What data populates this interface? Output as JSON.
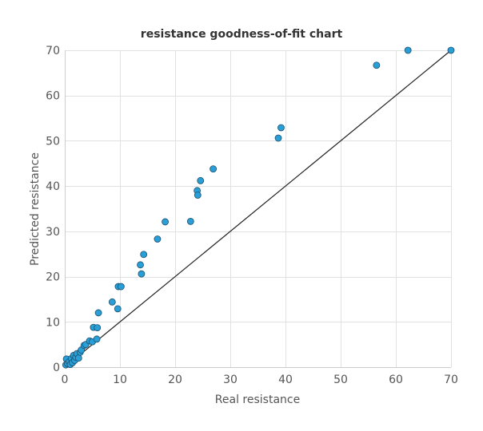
{
  "chart_data": {
    "type": "scatter",
    "title": "resistance goodness-of-fit chart",
    "xlabel": "Real resistance",
    "ylabel": "Predicted resistance",
    "xlim": [
      0,
      70
    ],
    "ylim": [
      0,
      70
    ],
    "xticks": [
      "0",
      "10",
      "20",
      "30",
      "40",
      "50",
      "60",
      "70"
    ],
    "yticks": [
      "0",
      "10",
      "20",
      "30",
      "40",
      "50",
      "60",
      "70"
    ],
    "grid": true,
    "legend": "none",
    "point_color": "#2a9fd6",
    "reference_line": {
      "x": [
        0,
        70
      ],
      "y": [
        0,
        70
      ],
      "color": "#222222"
    },
    "points": [
      {
        "x": 0.2,
        "y": 0.5
      },
      {
        "x": 0.3,
        "y": 1.8
      },
      {
        "x": 0.5,
        "y": 0.8
      },
      {
        "x": 0.8,
        "y": 1.2
      },
      {
        "x": 1.0,
        "y": 0.6
      },
      {
        "x": 1.2,
        "y": 1.9
      },
      {
        "x": 1.4,
        "y": 1.0
      },
      {
        "x": 1.6,
        "y": 2.6
      },
      {
        "x": 1.8,
        "y": 1.5
      },
      {
        "x": 2.0,
        "y": 2.2
      },
      {
        "x": 2.2,
        "y": 3.0
      },
      {
        "x": 2.5,
        "y": 2.0
      },
      {
        "x": 2.8,
        "y": 3.3
      },
      {
        "x": 3.0,
        "y": 3.8
      },
      {
        "x": 3.5,
        "y": 4.8
      },
      {
        "x": 3.8,
        "y": 5.0
      },
      {
        "x": 4.5,
        "y": 5.8
      },
      {
        "x": 5.0,
        "y": 5.6
      },
      {
        "x": 5.2,
        "y": 8.8
      },
      {
        "x": 5.8,
        "y": 6.2
      },
      {
        "x": 5.9,
        "y": 8.7
      },
      {
        "x": 6.1,
        "y": 12.0
      },
      {
        "x": 8.6,
        "y": 14.4
      },
      {
        "x": 9.6,
        "y": 12.9
      },
      {
        "x": 9.7,
        "y": 17.8
      },
      {
        "x": 10.2,
        "y": 17.8
      },
      {
        "x": 13.7,
        "y": 22.6
      },
      {
        "x": 13.9,
        "y": 20.6
      },
      {
        "x": 14.3,
        "y": 24.9
      },
      {
        "x": 16.8,
        "y": 28.3
      },
      {
        "x": 18.2,
        "y": 32.1
      },
      {
        "x": 22.8,
        "y": 32.2
      },
      {
        "x": 24.0,
        "y": 39.0
      },
      {
        "x": 24.1,
        "y": 38.0
      },
      {
        "x": 24.6,
        "y": 41.2
      },
      {
        "x": 26.9,
        "y": 43.8
      },
      {
        "x": 38.7,
        "y": 50.6
      },
      {
        "x": 39.2,
        "y": 52.9
      },
      {
        "x": 56.5,
        "y": 66.7
      },
      {
        "x": 62.2,
        "y": 70.0
      },
      {
        "x": 70.0,
        "y": 70.0
      }
    ]
  }
}
